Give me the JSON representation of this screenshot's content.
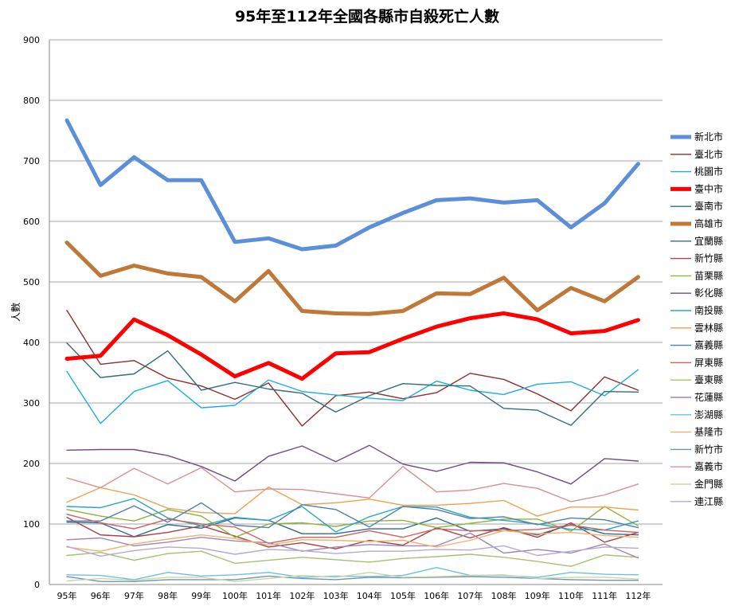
{
  "chart_data": {
    "type": "line",
    "title": "95年至112年全國各縣市自殺死亡人數",
    "xlabel": "",
    "ylabel": "人數",
    "ylim": [
      0,
      900
    ],
    "yticks": [
      0,
      100,
      200,
      300,
      400,
      500,
      600,
      700,
      800,
      900
    ],
    "grid": true,
    "legend_position": "right",
    "categories": [
      "95年",
      "96年",
      "97年",
      "98年",
      "99年",
      "100年",
      "101年",
      "102年",
      "103年",
      "104年",
      "105年",
      "106年",
      "107年",
      "108年",
      "109年",
      "110年",
      "111年",
      "112年"
    ],
    "series": [
      {
        "name": "新北市",
        "color": "#5B8FD9",
        "width": 5,
        "values": [
          767,
          660,
          706,
          668,
          668,
          566,
          572,
          554,
          560,
          590,
          614,
          635,
          638,
          631,
          635,
          590,
          630,
          695
        ]
      },
      {
        "name": "臺北市",
        "color": "#8E2E2E",
        "width": 1.4,
        "values": [
          453,
          364,
          370,
          341,
          328,
          306,
          333,
          262,
          312,
          318,
          307,
          317,
          349,
          339,
          315,
          287,
          343,
          321
        ]
      },
      {
        "name": "桃園市",
        "color": "#1AAFE0",
        "width": 1.4,
        "values": [
          352,
          266,
          319,
          337,
          292,
          296,
          338,
          319,
          313,
          308,
          304,
          336,
          321,
          314,
          331,
          335,
          312,
          355
        ]
      },
      {
        "name": "臺中市",
        "color": "#FF0000",
        "width": 5,
        "values": [
          373,
          378,
          438,
          412,
          380,
          344,
          366,
          340,
          382,
          384,
          406,
          426,
          440,
          448,
          438,
          415,
          419,
          437
        ]
      },
      {
        "name": "臺南市",
        "color": "#2E6F7A",
        "width": 1.4,
        "values": [
          399,
          342,
          348,
          386,
          321,
          334,
          323,
          316,
          285,
          312,
          332,
          329,
          328,
          291,
          288,
          263,
          319,
          318
        ]
      },
      {
        "name": "高雄市",
        "color": "#C07838",
        "width": 5,
        "values": [
          565,
          510,
          527,
          514,
          508,
          468,
          518,
          452,
          448,
          447,
          452,
          481,
          480,
          507,
          453,
          490,
          468,
          508
        ]
      },
      {
        "name": "宜蘭縣",
        "color": "#2F6B8F",
        "width": 1.4,
        "values": [
          103,
          102,
          79,
          99,
          93,
          110,
          106,
          84,
          84,
          92,
          92,
          110,
          88,
          92,
          82,
          99,
          84,
          82
        ]
      },
      {
        "name": "新竹縣",
        "color": "#A94442",
        "width": 1.4,
        "values": [
          111,
          82,
          79,
          86,
          97,
          80,
          62,
          69,
          59,
          73,
          65,
          94,
          77,
          94,
          78,
          102,
          70,
          86
        ]
      },
      {
        "name": "苗栗縣",
        "color": "#8DB33A",
        "width": 1.4,
        "values": [
          124,
          113,
          105,
          124,
          113,
          78,
          100,
          102,
          96,
          105,
          106,
          94,
          101,
          108,
          108,
          88,
          129,
          97
        ]
      },
      {
        "name": "彰化縣",
        "color": "#6E4B8C",
        "width": 1.4,
        "values": [
          222,
          223,
          223,
          213,
          195,
          171,
          212,
          229,
          203,
          230,
          199,
          187,
          202,
          201,
          186,
          166,
          208,
          204
        ]
      },
      {
        "name": "南投縣",
        "color": "#2AA8C0",
        "width": 1.4,
        "values": [
          129,
          127,
          142,
          110,
          97,
          111,
          106,
          129,
          87,
          112,
          129,
          128,
          111,
          106,
          100,
          91,
          90,
          105
        ]
      },
      {
        "name": "雲林縣",
        "color": "#F0A050",
        "width": 1.4,
        "values": [
          136,
          160,
          148,
          126,
          119,
          117,
          161,
          132,
          135,
          141,
          131,
          131,
          134,
          139,
          113,
          128,
          128,
          123
        ]
      },
      {
        "name": "嘉義縣",
        "color": "#4F7FB0",
        "width": 1.4,
        "values": [
          105,
          105,
          130,
          103,
          135,
          98,
          94,
          132,
          124,
          95,
          129,
          124,
          109,
          112,
          99,
          110,
          107,
          94
        ]
      },
      {
        "name": "屏東縣",
        "color": "#D06060",
        "width": 1.4,
        "values": [
          116,
          102,
          92,
          108,
          100,
          95,
          68,
          78,
          78,
          89,
          78,
          92,
          89,
          89,
          91,
          98,
          90,
          86
        ]
      },
      {
        "name": "臺東縣",
        "color": "#A8C070",
        "width": 1.4,
        "values": [
          48,
          53,
          40,
          51,
          55,
          35,
          40,
          45,
          41,
          37,
          43,
          46,
          50,
          45,
          38,
          30,
          49,
          45
        ]
      },
      {
        "name": "花蓮縣",
        "color": "#9E86B8",
        "width": 1.4,
        "values": [
          74,
          77,
          64,
          70,
          78,
          72,
          69,
          55,
          62,
          66,
          64,
          64,
          85,
          52,
          58,
          52,
          67,
          44
        ]
      },
      {
        "name": "澎湖縣",
        "color": "#6FC0E0",
        "width": 1.4,
        "values": [
          16,
          15,
          8,
          20,
          14,
          16,
          20,
          12,
          14,
          13,
          15,
          28,
          15,
          15,
          12,
          20,
          17,
          16
        ]
      },
      {
        "name": "基隆市",
        "color": "#F5B070",
        "width": 1.4,
        "values": [
          62,
          55,
          67,
          75,
          82,
          76,
          65,
          74,
          73,
          71,
          73,
          62,
          73,
          89,
          84,
          86,
          81,
          78
        ]
      },
      {
        "name": "新竹市",
        "color": "#6E93B8",
        "width": 1.4,
        "values": [
          13,
          5,
          5,
          8,
          8,
          8,
          14,
          10,
          8,
          12,
          11,
          12,
          13,
          12,
          10,
          8,
          7,
          7
        ]
      },
      {
        "name": "嘉義市",
        "color": "#D89090",
        "width": 1.4,
        "values": [
          176,
          160,
          192,
          166,
          193,
          153,
          158,
          157,
          150,
          143,
          195,
          153,
          156,
          167,
          159,
          137,
          148,
          166
        ]
      },
      {
        "name": "金門縣",
        "color": "#C8D8A0",
        "width": 1.4,
        "values": [
          6,
          10,
          7,
          12,
          12,
          5,
          10,
          15,
          12,
          20,
          12,
          13,
          15,
          16,
          10,
          12,
          12,
          9
        ]
      },
      {
        "name": "連江縣",
        "color": "#B8A8D0",
        "width": 1.4,
        "values": [
          63,
          47,
          56,
          62,
          60,
          50,
          58,
          56,
          51,
          55,
          55,
          58,
          57,
          64,
          48,
          55,
          62,
          60
        ]
      }
    ]
  }
}
